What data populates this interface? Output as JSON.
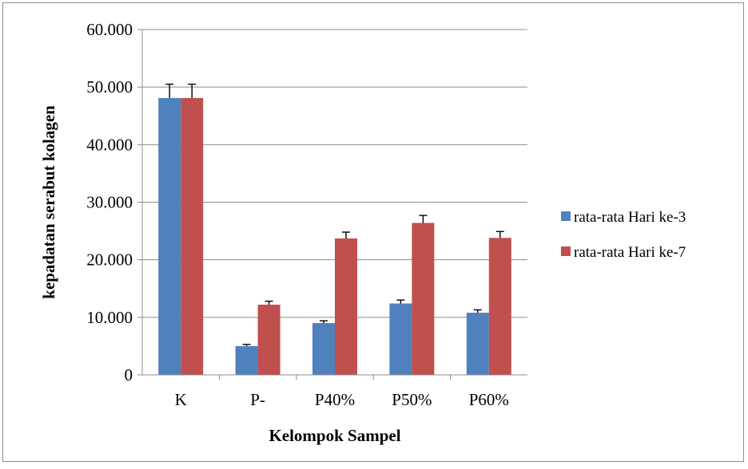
{
  "chart_data": {
    "type": "bar",
    "title": "",
    "xlabel": "Kelompok Sampel",
    "ylabel": "kepadatan serabut kolagen",
    "categories": [
      "K",
      "P-",
      "P40%",
      "P50%",
      "P60%"
    ],
    "ylim": [
      0,
      60
    ],
    "y_ticks": [
      0,
      10,
      20,
      30,
      40,
      50,
      60
    ],
    "y_tick_labels": [
      "0",
      "10.000",
      "20.000",
      "30.000",
      "40.000",
      "50.000",
      "60.000"
    ],
    "grid": "horizontal",
    "legend_position": "right",
    "error_bars": true,
    "series": [
      {
        "name": "rata-rata Hari ke-3",
        "color": "#4f81bd",
        "values": [
          48.1,
          5.0,
          9.0,
          12.4,
          10.8
        ],
        "errors": [
          2.4,
          0.3,
          0.4,
          0.6,
          0.5
        ]
      },
      {
        "name": "rata-rata Hari ke-7",
        "color": "#c0504d",
        "values": [
          48.1,
          12.2,
          23.7,
          26.4,
          23.8
        ],
        "errors": [
          2.4,
          0.6,
          1.1,
          1.3,
          1.1
        ]
      }
    ]
  }
}
